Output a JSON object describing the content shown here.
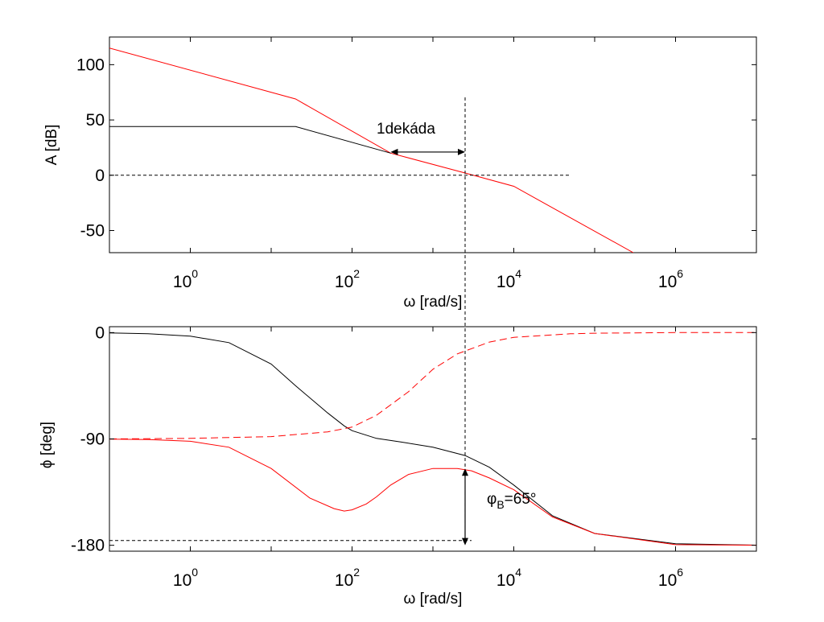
{
  "colors": {
    "red": "#ff0000",
    "black": "#000000",
    "frame": "#000000"
  },
  "chart_data": [
    {
      "type": "line",
      "xscale": "log",
      "xlim": [
        0.1,
        10000000
      ],
      "ylim": [
        -70,
        125
      ],
      "xlabel": "ω [rad/s]",
      "ylabel": "A [dB]",
      "xticks": [
        {
          "x": 1,
          "base": "10",
          "exp": "0"
        },
        {
          "x": 100,
          "base": "10",
          "exp": "2"
        },
        {
          "x": 10000,
          "base": "10",
          "exp": "4"
        },
        {
          "x": 1000000,
          "base": "10",
          "exp": "6"
        }
      ],
      "yticks": [
        {
          "y": 100,
          "label": "100"
        },
        {
          "y": 50,
          "label": "50"
        },
        {
          "y": 0,
          "label": "0"
        },
        {
          "y": -50,
          "label": "-50"
        }
      ],
      "series": [
        {
          "color": "red",
          "style": "solid",
          "x": [
            0.1,
            20,
            300,
            2500,
            10000,
            300000
          ],
          "y": [
            115,
            69,
            20,
            2,
            -10,
            -70
          ]
        },
        {
          "color": "black",
          "style": "solid",
          "x": [
            0.1,
            20,
            300
          ],
          "y": [
            44,
            44,
            20
          ]
        },
        {
          "color": "black",
          "style": "dashed",
          "x": [
            0.1,
            50000
          ],
          "y": [
            0,
            0
          ]
        }
      ],
      "annotations": {
        "decade_text": "1dekáda",
        "decade_arrow": {
          "x": [
            300,
            2500
          ],
          "y": 21
        },
        "crossover_line_x": 2500
      }
    },
    {
      "type": "line",
      "xscale": "log",
      "xlim": [
        0.1,
        10000000
      ],
      "ylim": [
        -185,
        5
      ],
      "xlabel": "ω [rad/s]",
      "ylabel": "ϕ [deg]",
      "xticks": [
        {
          "x": 1,
          "base": "10",
          "exp": "0"
        },
        {
          "x": 100,
          "base": "10",
          "exp": "2"
        },
        {
          "x": 10000,
          "base": "10",
          "exp": "4"
        },
        {
          "x": 1000000,
          "base": "10",
          "exp": "6"
        }
      ],
      "yticks": [
        {
          "y": 0,
          "label": "0"
        },
        {
          "y": -90,
          "label": "-90"
        },
        {
          "y": -180,
          "label": "-180"
        }
      ],
      "series": [
        {
          "color": "black",
          "style": "solid",
          "x": [
            0.1,
            0.3,
            1,
            3,
            10,
            20,
            50,
            80,
            100,
            200,
            400,
            1000,
            2500,
            5000,
            10000,
            30000,
            100000,
            1000000,
            10000000
          ],
          "y": [
            -0.3,
            -0.9,
            -3,
            -8.5,
            -26.6,
            -45,
            -68,
            -79,
            -83,
            -89.5,
            -92.5,
            -97,
            -104,
            -114,
            -129,
            -155,
            -170,
            -178.7,
            -179.9
          ]
        },
        {
          "color": "red",
          "style": "dashed",
          "x": [
            0.1,
            1,
            10,
            50,
            100,
            200,
            500,
            1000,
            2000,
            5000,
            10000,
            50000,
            100000,
            1000000,
            10000000
          ],
          "y": [
            -90,
            -89.5,
            -88,
            -84,
            -80,
            -70,
            -50,
            -31,
            -18,
            -8,
            -4,
            -1,
            -0.5,
            0,
            0
          ]
        },
        {
          "color": "red",
          "style": "solid",
          "x": [
            0.1,
            0.3,
            1,
            3,
            10,
            30,
            60,
            80,
            100,
            150,
            200,
            300,
            500,
            1000,
            2000,
            3000,
            5000,
            10000,
            30000,
            100000,
            1000000,
            10000000
          ],
          "y": [
            -90.2,
            -90.5,
            -92,
            -97,
            -115,
            -140,
            -149,
            -151,
            -150,
            -145,
            -139,
            -129,
            -120,
            -115,
            -115,
            -117,
            -123,
            -133,
            -156,
            -170,
            -179.5,
            -179.9
          ]
        }
      ],
      "annotations": {
        "phase_margin_text": "φ",
        "phase_margin_sub": "B",
        "phase_margin_value": "=65°",
        "phase_margin_arrow": {
          "x": 2500,
          "y": [
            -115,
            -180
          ]
        },
        "ref_line": {
          "x": [
            0.1,
            3000
          ],
          "y": -176
        },
        "crossover_line_x": 2500
      }
    }
  ]
}
